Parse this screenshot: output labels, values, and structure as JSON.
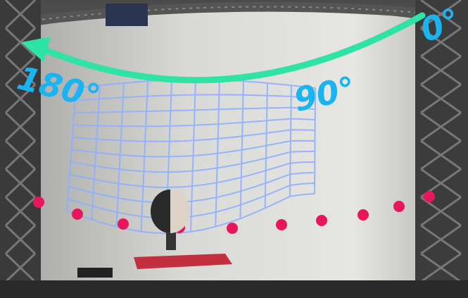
{
  "angle_labels": [
    "0°",
    "90°",
    "180°"
  ]
}
